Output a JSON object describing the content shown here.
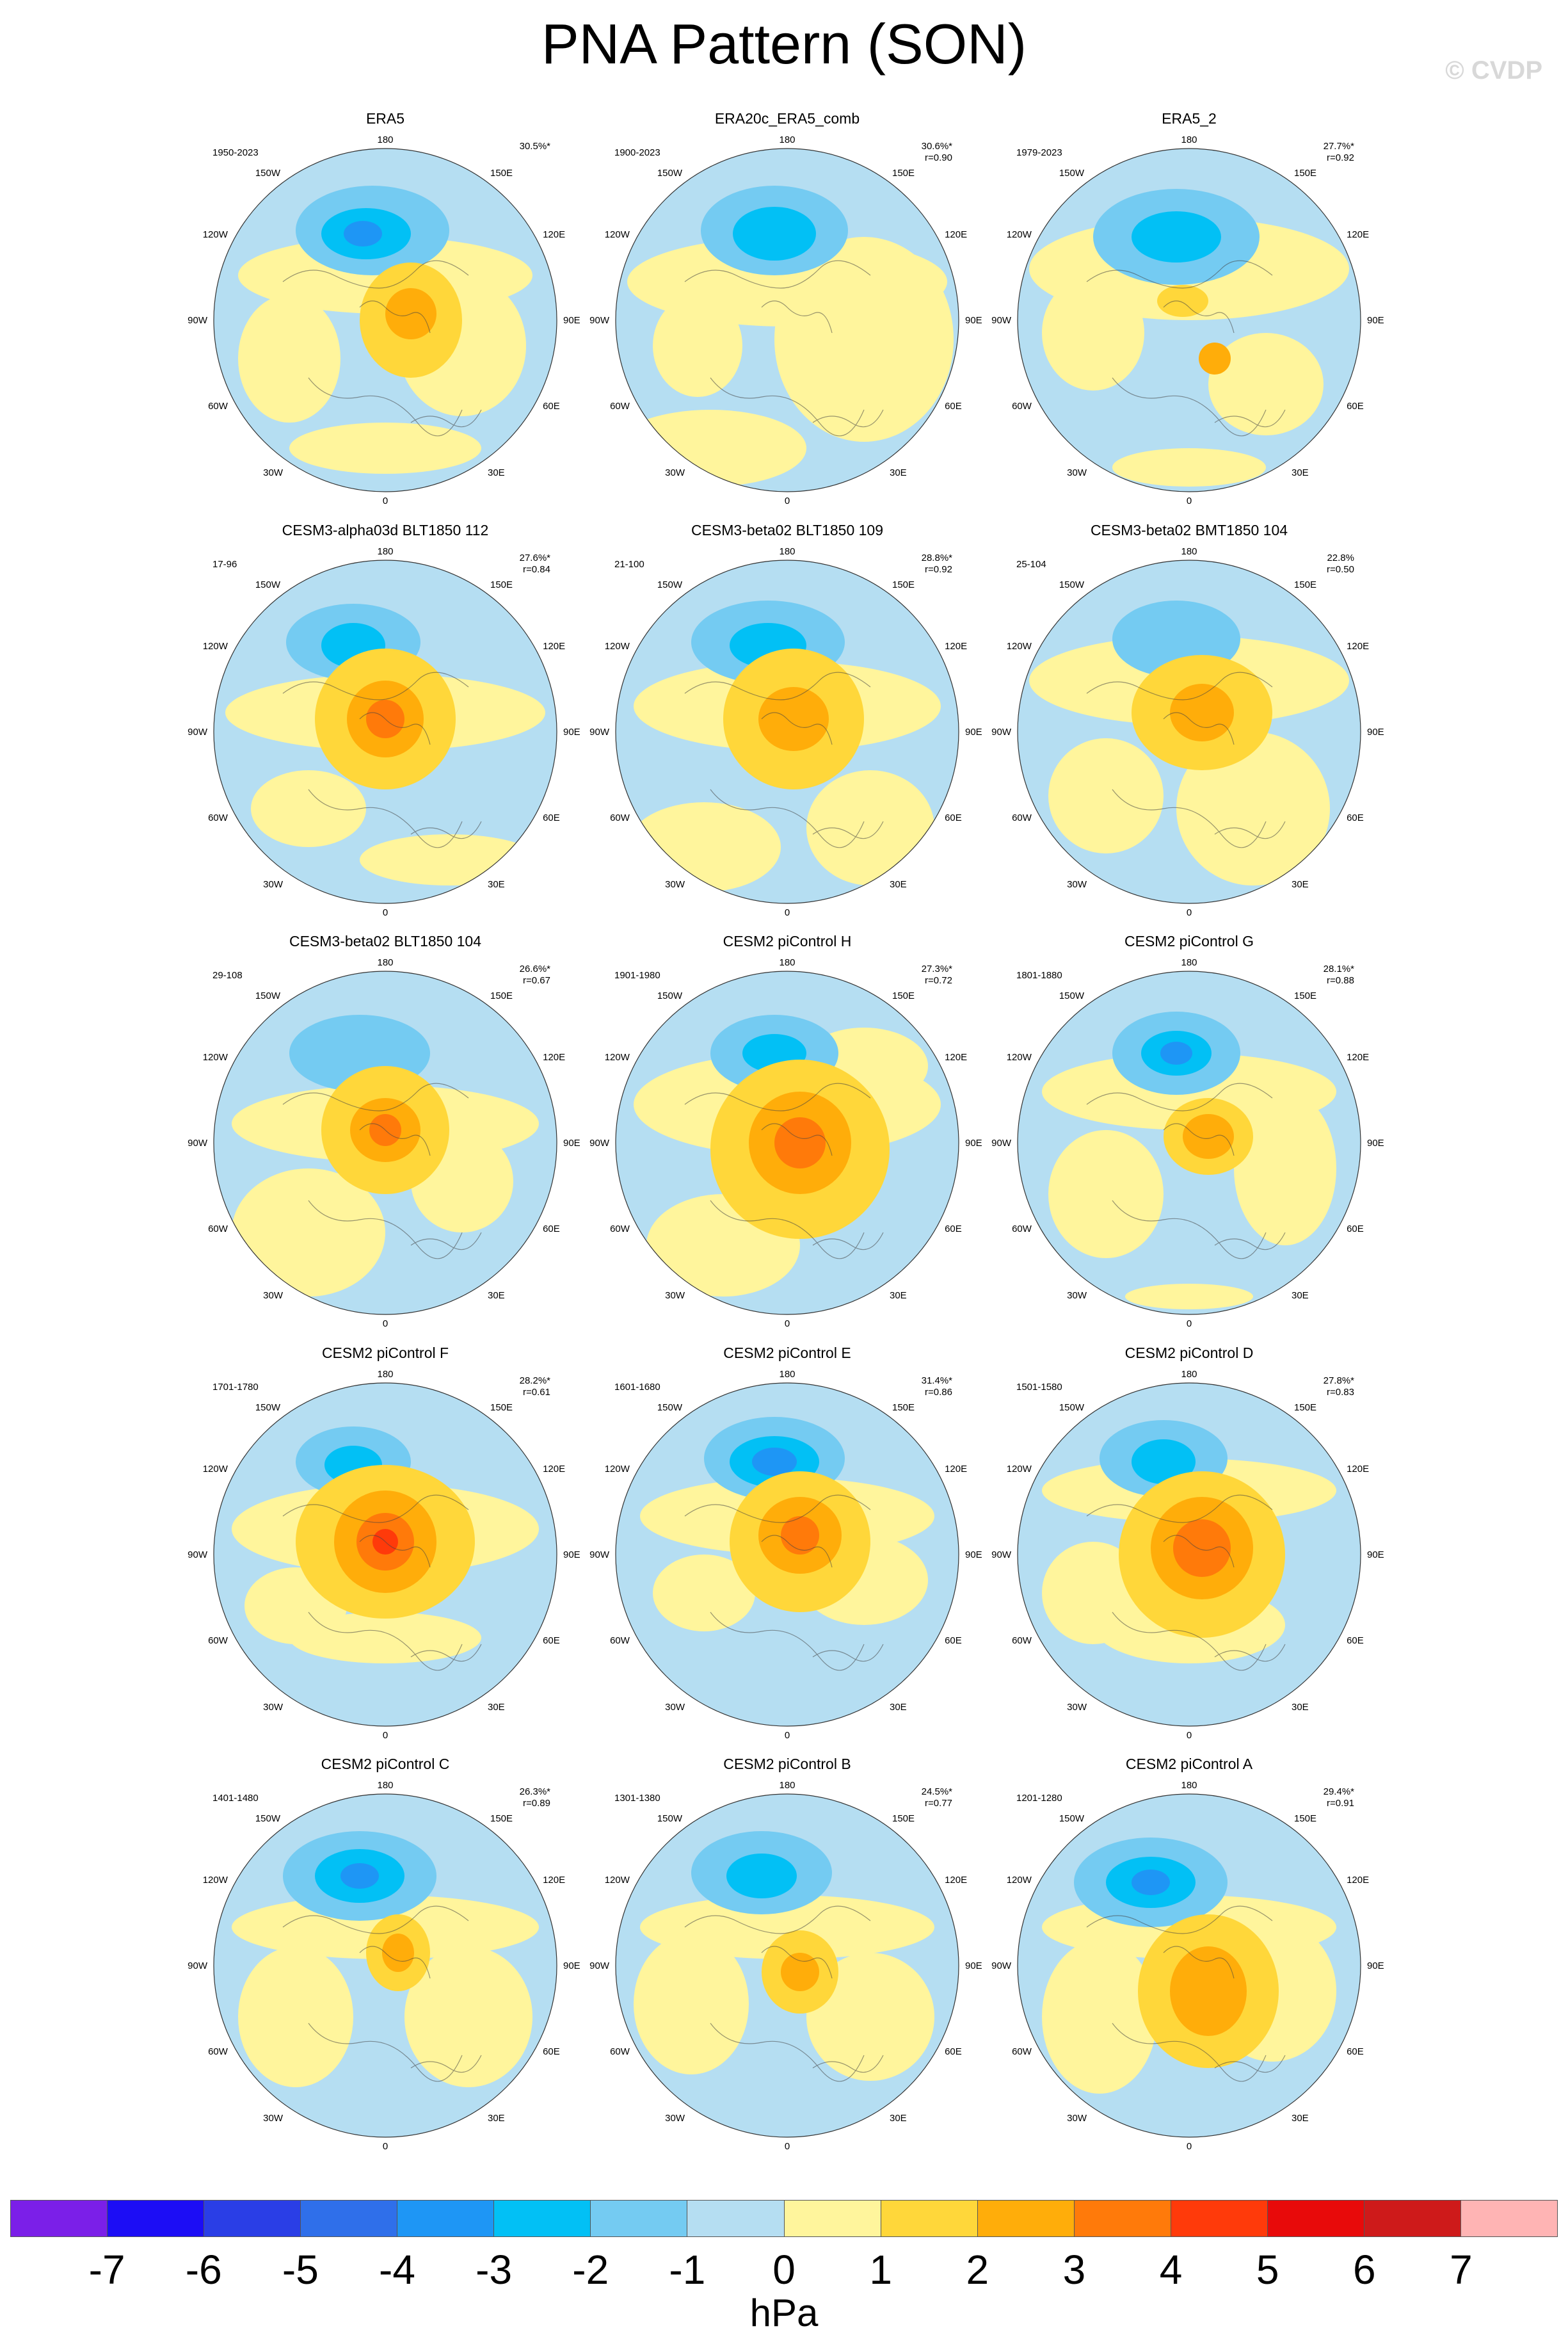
{
  "title": "PNA Pattern (SON)",
  "watermark": "© CVDP",
  "units": "hPa",
  "colorbar": {
    "colors": [
      "#7b1fe8",
      "#1c0df5",
      "#2a3ee6",
      "#2f6fea",
      "#1e96f5",
      "#02c0f5",
      "#74cbf2",
      "#b5def2",
      "#fff59c",
      "#ffd73a",
      "#ffad0a",
      "#ff7a0a",
      "#ff3a0a",
      "#e80a0a",
      "#ce1a1a",
      "#ffb4b4"
    ],
    "ticks": [
      "-7",
      "-6",
      "-5",
      "-4",
      "-3",
      "-2",
      "-1",
      "0",
      "1",
      "2",
      "3",
      "4",
      "5",
      "6",
      "7"
    ]
  },
  "map_labels": {
    "top": "180",
    "bottom": "0",
    "upper_left": "150W",
    "upper_right": "150E",
    "mid_upper_left": "120W",
    "mid_upper_right": "120E",
    "left": "90W",
    "right": "90E",
    "mid_lower_left": "60W",
    "mid_lower_right": "60E",
    "lower_left": "30W",
    "lower_right": "30E"
  },
  "panels": [
    {
      "title": "ERA5",
      "years": "1950-2023",
      "pct": "30.5%*",
      "r": ""
    },
    {
      "title": "ERA20c_ERA5_comb",
      "years": "1900-2023",
      "pct": "30.6%*",
      "r": "r=0.90"
    },
    {
      "title": "ERA5_2",
      "years": "1979-2023",
      "pct": "27.7%*",
      "r": "r=0.92"
    },
    {
      "title": "CESM3-alpha03d BLT1850 112",
      "years": "17-96",
      "pct": "27.6%*",
      "r": "r=0.84"
    },
    {
      "title": "CESM3-beta02 BLT1850 109",
      "years": "21-100",
      "pct": "28.8%*",
      "r": "r=0.92"
    },
    {
      "title": "CESM3-beta02 BMT1850 104",
      "years": "25-104",
      "pct": "22.8%",
      "r": "r=0.50"
    },
    {
      "title": "CESM3-beta02 BLT1850 104",
      "years": "29-108",
      "pct": "26.6%*",
      "r": "r=0.67"
    },
    {
      "title": "CESM2 piControl H",
      "years": "1901-1980",
      "pct": "27.3%*",
      "r": "r=0.72"
    },
    {
      "title": "CESM2 piControl G",
      "years": "1801-1880",
      "pct": "28.1%*",
      "r": "r=0.88"
    },
    {
      "title": "CESM2 piControl F",
      "years": "1701-1780",
      "pct": "28.2%*",
      "r": "r=0.61"
    },
    {
      "title": "CESM2 piControl E",
      "years": "1601-1680",
      "pct": "31.4%*",
      "r": "r=0.86"
    },
    {
      "title": "CESM2 piControl D",
      "years": "1501-1580",
      "pct": "27.8%*",
      "r": "r=0.83"
    },
    {
      "title": "CESM2 piControl C",
      "years": "1401-1480",
      "pct": "26.3%*",
      "r": "r=0.89"
    },
    {
      "title": "CESM2 piControl B",
      "years": "1301-1380",
      "pct": "24.5%*",
      "r": "r=0.77"
    },
    {
      "title": "CESM2 piControl A",
      "years": "1201-1280",
      "pct": "29.4%*",
      "r": "r=0.91"
    }
  ]
}
